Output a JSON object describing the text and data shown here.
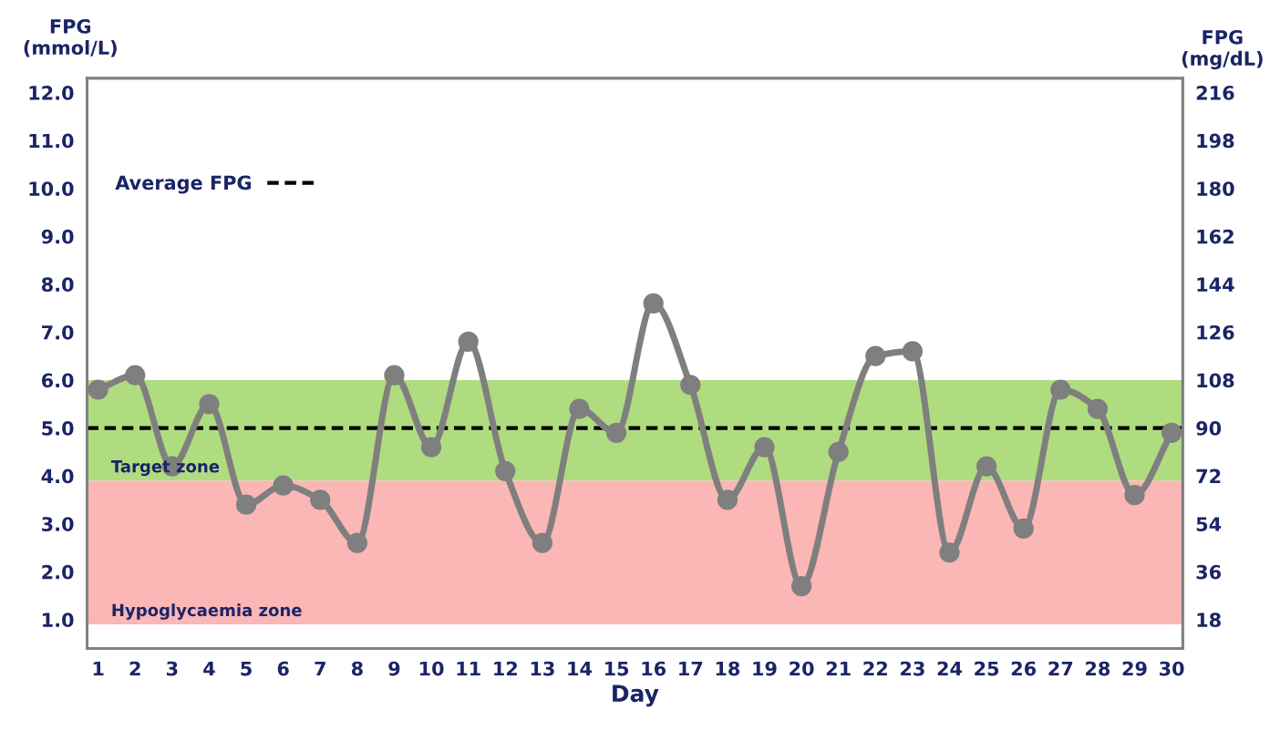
{
  "chart_data": {
    "type": "line",
    "xlabel": "Day",
    "ylabel": "FPG\n(mmol/L)",
    "y2label": "FPG\n(mg/dL)",
    "categories": [
      "1",
      "2",
      "3",
      "4",
      "5",
      "6",
      "7",
      "8",
      "9",
      "10",
      "11",
      "12",
      "13",
      "14",
      "15",
      "16",
      "17",
      "18",
      "19",
      "20",
      "21",
      "22",
      "23",
      "24",
      "25",
      "26",
      "27",
      "28",
      "29",
      "30"
    ],
    "series": [
      {
        "color": "#7f7f7f",
        "values": [
          5.8,
          6.1,
          4.2,
          5.5,
          3.4,
          3.8,
          3.5,
          2.6,
          6.1,
          4.6,
          6.8,
          4.1,
          2.6,
          5.4,
          4.9,
          7.6,
          5.9,
          3.5,
          4.6,
          1.7,
          4.5,
          6.5,
          6.6,
          2.4,
          4.2,
          2.9,
          5.8,
          5.4,
          3.6,
          4.9
        ]
      }
    ],
    "marker": "circle",
    "line_style": "solid",
    "grid": false,
    "legend": "top left",
    "ylim": [
      0.4,
      12.3
    ],
    "yticks": [
      {
        "value": 1,
        "label": "1.0"
      },
      {
        "value": 2,
        "label": "2.0"
      },
      {
        "value": 3,
        "label": "3.0"
      },
      {
        "value": 4,
        "label": "4.0"
      },
      {
        "value": 5,
        "label": "5.0"
      },
      {
        "value": 6,
        "label": "6.0"
      },
      {
        "value": 7,
        "label": "7.0"
      },
      {
        "value": 8,
        "label": "8.0"
      },
      {
        "value": 9,
        "label": "9.0"
      },
      {
        "value": 10,
        "label": "10.0"
      },
      {
        "value": 11,
        "label": "11.0"
      },
      {
        "value": 12,
        "label": "12.0"
      }
    ],
    "y2lim": [
      7.2,
      221.4
    ],
    "y2ticks": [
      18,
      36,
      54,
      72,
      90,
      108,
      126,
      144,
      162,
      180,
      198,
      216
    ],
    "ref_lines": [
      {
        "axis": "y",
        "value": 5.0,
        "label": "Average FPG",
        "color": "#000000",
        "line_style": "dashed"
      }
    ],
    "bands": [
      {
        "axis": "y",
        "from": 3.9,
        "to": 6.0,
        "label": "Target zone",
        "color": "#b0dc80"
      },
      {
        "axis": "y",
        "from": 0.9,
        "to": 3.9,
        "label": "Hypoglycaemia zone",
        "color": "#fbb6b6"
      }
    ]
  }
}
